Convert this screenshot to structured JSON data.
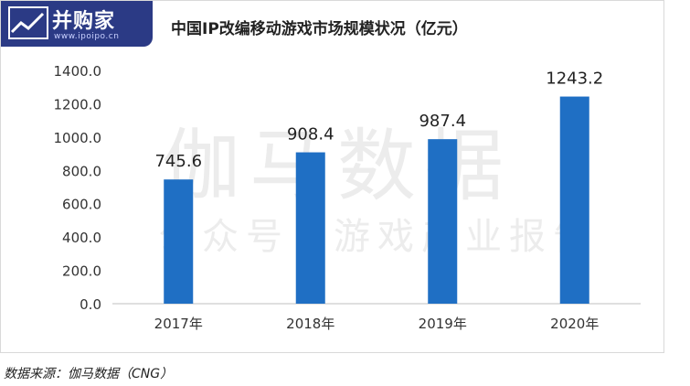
{
  "logo": {
    "name": "并购家",
    "url": "www.ipoipo.cn"
  },
  "watermark": {
    "line1": "伽马数据",
    "line2": "公众号：游戏产业报告"
  },
  "source": "数据来源：伽马数据（CNG）",
  "colors": {
    "bar": "#1f6fc4",
    "logo_bg": "#2b3a85",
    "axis": "#bfbfbf"
  },
  "chart_data": {
    "type": "bar",
    "title": "中国IP改编移动游戏市场规模状况（亿元）",
    "xlabel": "",
    "ylabel": "",
    "categories": [
      "2017年",
      "2018年",
      "2019年",
      "2020年"
    ],
    "values": [
      745.6,
      908.4,
      987.4,
      1243.2
    ],
    "data_labels": [
      "745.6",
      "908.4",
      "987.4",
      "1243.2"
    ],
    "yticks": [
      "0.0",
      "200.0",
      "400.0",
      "600.0",
      "800.0",
      "1000.0",
      "1200.0",
      "1400.0"
    ],
    "ylim": [
      0,
      1400
    ],
    "grid": false,
    "legend": "none"
  }
}
